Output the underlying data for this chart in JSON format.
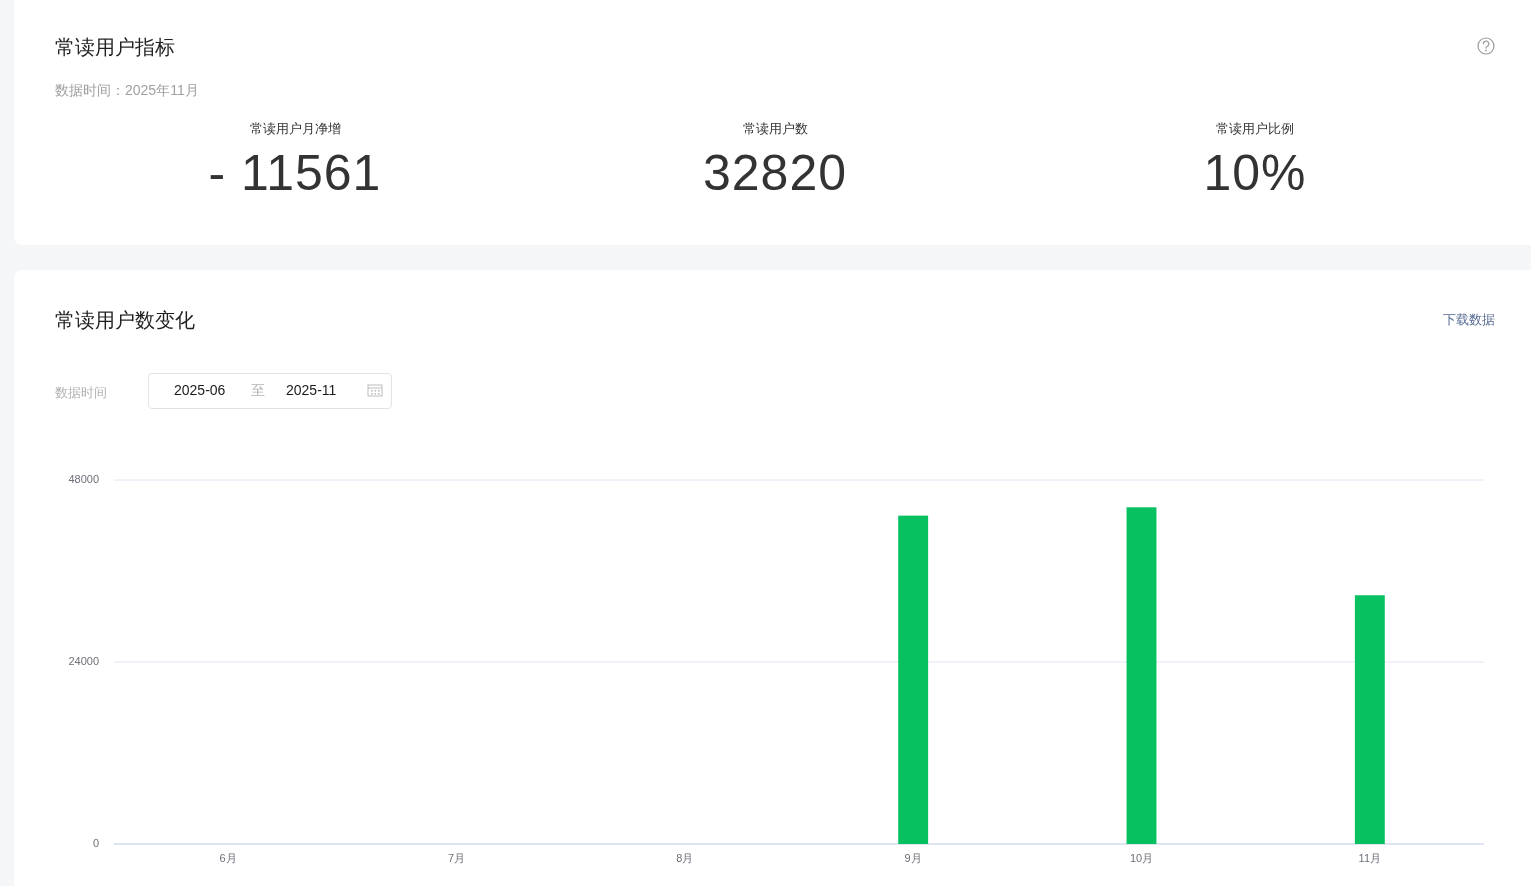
{
  "chart_data": [
    {
      "type": "other",
      "title": "常读用户指标",
      "subtitle": "数据时间：2025年11月",
      "categories": [
        "常读用户月净增",
        "常读用户数",
        "常读用户比例"
      ],
      "annotations": [
        "- 11561",
        "32820",
        "10%"
      ]
    },
    {
      "type": "bar",
      "title": "常读用户数变化",
      "annotations": [
        "下载数据",
        "数据时间",
        "2025-06",
        "至",
        "2025-11"
      ],
      "categories": [
        "6月",
        "7月",
        "8月",
        "9月",
        "10月",
        "11月"
      ],
      "values": [
        null,
        null,
        null,
        43300,
        44400,
        32800
      ],
      "color": "#07c160",
      "ylim": [
        0,
        48000
      ],
      "yticks": [
        0,
        24000,
        48000
      ],
      "grid": "y"
    }
  ]
}
